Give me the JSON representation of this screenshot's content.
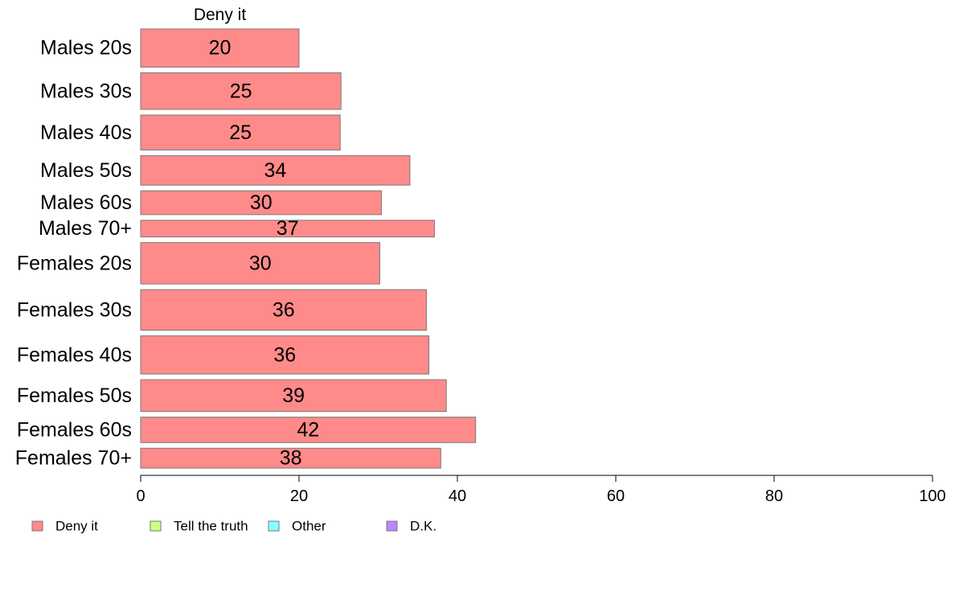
{
  "chart_data": {
    "type": "bar",
    "orientation": "horizontal",
    "stacked": true,
    "column_title": "Deny it",
    "categories": [
      "Males 20s",
      "Males 30s",
      "Males 40s",
      "Males 50s",
      "Males 60s",
      "Males 70+",
      "Females 20s",
      "Females 30s",
      "Females 40s",
      "Females 50s",
      "Females 60s",
      "Females 70+"
    ],
    "series": [
      {
        "name": "Deny it",
        "color": "#ff8a8a",
        "values": [
          20,
          25.3,
          25.2,
          34,
          30.4,
          37.1,
          30.2,
          36.1,
          36.4,
          38.6,
          42.3,
          37.9
        ],
        "labels": [
          "20",
          "25",
          "25",
          "34",
          "30",
          "37",
          "30",
          "36",
          "36",
          "39",
          "42",
          "38"
        ]
      }
    ],
    "row_weights": [
      48,
      46,
      44,
      37,
      30,
      21,
      52,
      51,
      48,
      40,
      32,
      25
    ],
    "xlim": [
      0,
      100
    ],
    "xticks": [
      "0",
      "20",
      "40",
      "60",
      "80",
      "100"
    ],
    "grid": false,
    "legend": {
      "placement": "bottom-left",
      "items": [
        {
          "label": "Deny it",
          "color": "#ff8a8a"
        },
        {
          "label": "Tell the truth",
          "color": "#ccff88"
        },
        {
          "label": "Other",
          "color": "#88ffff"
        },
        {
          "label": "D.K.",
          "color": "#b788ff"
        }
      ]
    }
  }
}
